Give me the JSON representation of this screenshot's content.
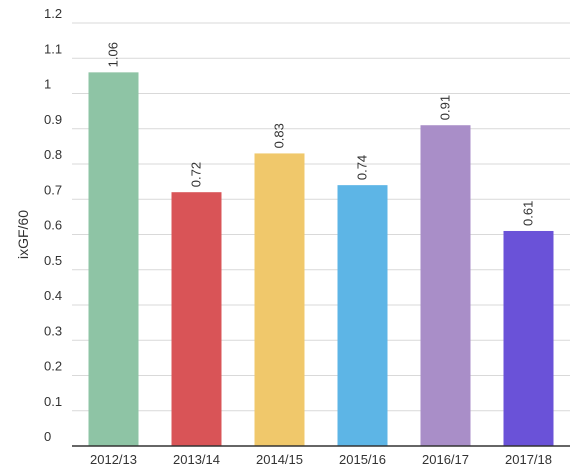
{
  "chart_data": {
    "type": "bar",
    "title": "",
    "xlabel": "",
    "ylabel": "ixGF/60",
    "categories": [
      "2012/13",
      "2013/14",
      "2014/15",
      "2015/16",
      "2016/17",
      "2017/18"
    ],
    "values": [
      1.06,
      0.72,
      0.83,
      0.74,
      0.91,
      0.61
    ],
    "value_labels": [
      "1.06",
      "0.72",
      "0.83",
      "0.74",
      "0.91",
      "0.61"
    ],
    "colors": [
      "#8ec4a5",
      "#d95457",
      "#f0c86b",
      "#5db5e6",
      "#a98ec8",
      "#6a52d8"
    ],
    "ylim": [
      0,
      1.2
    ],
    "yticks": [
      0,
      0.1,
      0.2,
      0.3,
      0.4,
      0.5,
      0.6,
      0.7,
      0.8,
      0.9,
      1,
      1.1,
      1.2
    ],
    "ytick_labels": [
      "0",
      "0.1",
      "0.2",
      "0.3",
      "0.4",
      "0.5",
      "0.6",
      "0.7",
      "0.8",
      "0.9",
      "1",
      "1.1",
      "1.2"
    ],
    "grid": true,
    "legend": "none"
  }
}
